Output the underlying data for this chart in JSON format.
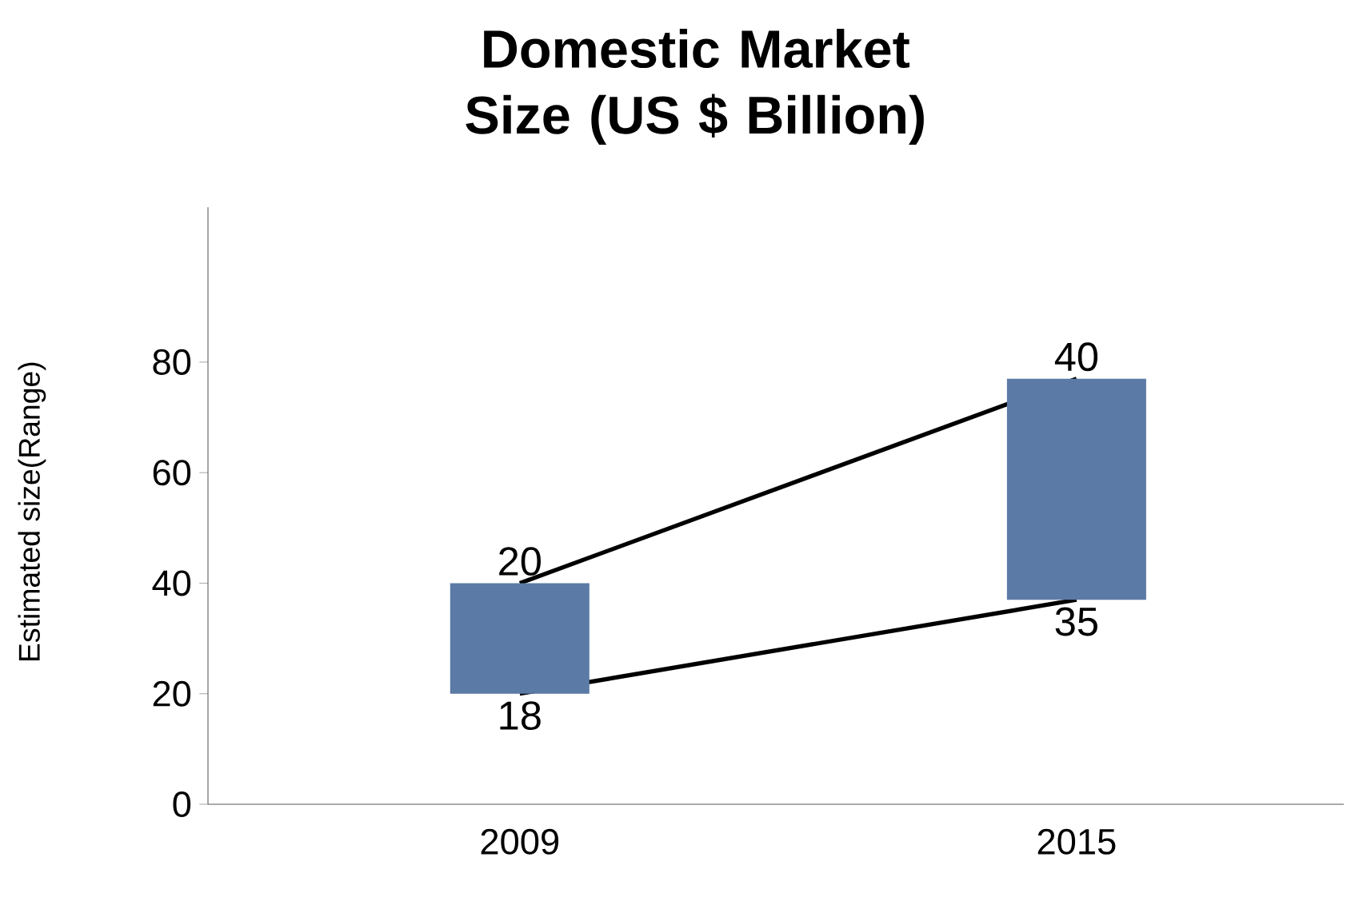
{
  "chart_data": {
    "type": "bar",
    "title": "Domestic Market Size (US $ Billion)",
    "ylabel": "Estimated size(Range)",
    "categories": [
      "2009",
      "2015"
    ],
    "ylim": [
      0,
      108
    ],
    "yticks": [
      0,
      20,
      40,
      60,
      80
    ],
    "grid": false,
    "marker": "none",
    "series": [
      {
        "type": "line",
        "color": "#000000",
        "values": [
          40,
          77
        ]
      },
      {
        "type": "line",
        "color": "#000000",
        "values": [
          20,
          37
        ]
      },
      {
        "type": "bar",
        "color": "#5b7aa6",
        "base": [
          20,
          37
        ],
        "values": [
          20,
          40
        ],
        "value_labels": [
          "20",
          "40"
        ]
      }
    ],
    "annotations": [
      {
        "text": "18",
        "x": "2009",
        "y": 20
      },
      {
        "text": "35",
        "x": "2015",
        "y": 37
      }
    ]
  }
}
